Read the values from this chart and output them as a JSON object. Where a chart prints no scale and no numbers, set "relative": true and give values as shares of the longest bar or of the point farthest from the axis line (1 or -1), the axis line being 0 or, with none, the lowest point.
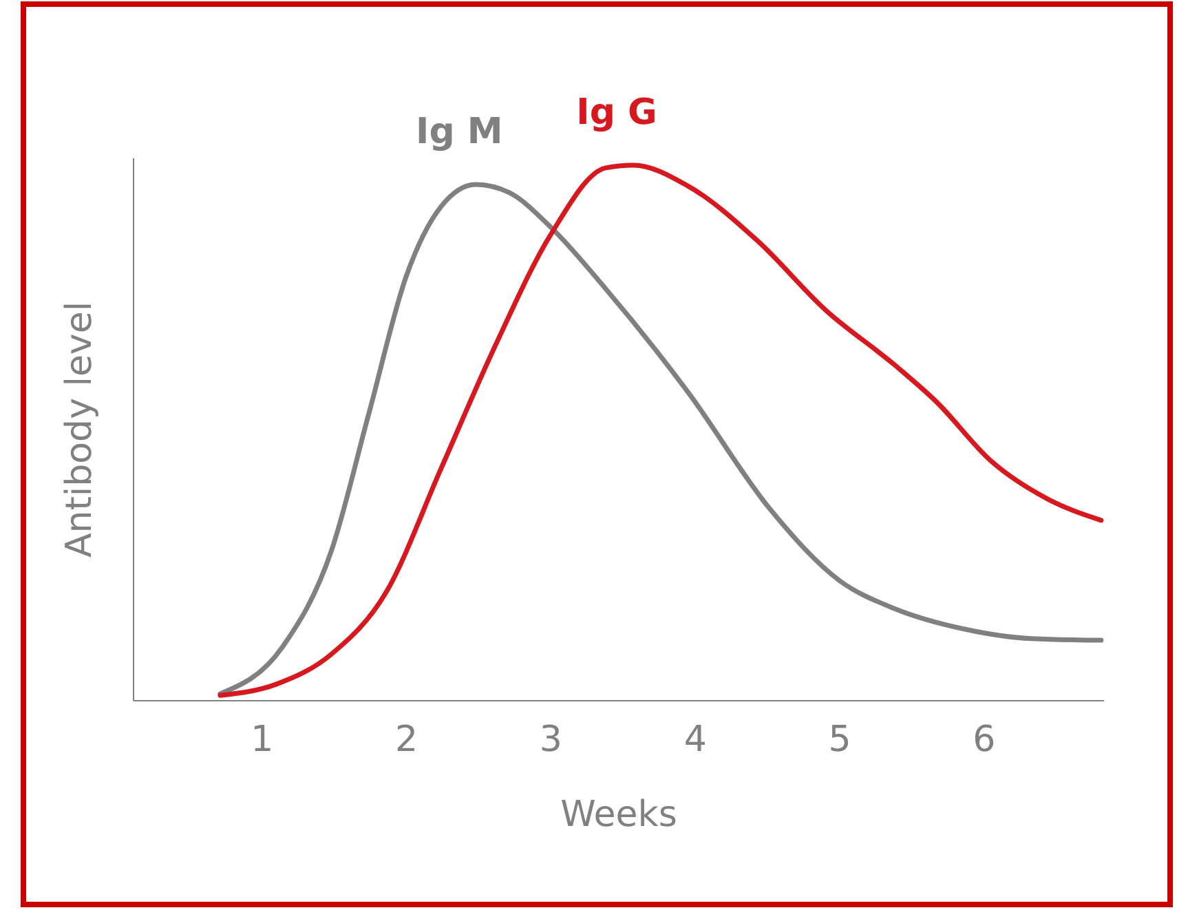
{
  "chart_data": {
    "type": "line",
    "xlabel": "Weeks",
    "ylabel": "Antibody level",
    "relative": true,
    "xlim": [
      0.11,
      6.83
    ],
    "xticks": [
      1,
      2,
      3,
      4,
      5,
      6
    ],
    "grid": false,
    "marker": "none",
    "line_style": "solid",
    "series": [
      {
        "name": "Ig M",
        "color": "#808080",
        "x": [
          0.71,
          1.14,
          1.48,
          1.74,
          2.0,
          2.24,
          2.48,
          2.71,
          3.0,
          3.38,
          3.95,
          4.52,
          5.0,
          5.38,
          5.86,
          6.33,
          6.81
        ],
        "values": [
          0.013,
          0.1,
          0.28,
          0.537,
          0.794,
          0.923,
          0.964,
          0.949,
          0.884,
          0.769,
          0.576,
          0.357,
          0.224,
          0.172,
          0.134,
          0.116,
          0.113
        ]
      },
      {
        "name": "Ig G",
        "color": "#d7191f",
        "x": [
          0.71,
          1.1,
          1.48,
          1.86,
          2.24,
          2.62,
          3.0,
          3.38,
          3.57,
          3.95,
          4.43,
          4.9,
          5.38,
          5.67,
          6.05,
          6.43,
          6.81
        ],
        "values": [
          0.01,
          0.031,
          0.087,
          0.203,
          0.434,
          0.666,
          0.871,
          0.995,
          1,
          0.961,
          0.859,
          0.73,
          0.627,
          0.558,
          0.447,
          0.378,
          0.337
        ]
      }
    ]
  }
}
